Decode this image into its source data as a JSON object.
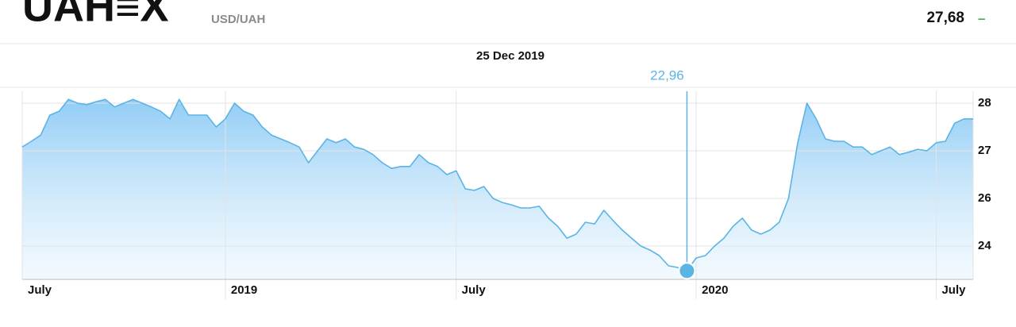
{
  "header": {
    "logo": "UAH≡X",
    "pair": "USD/UAH",
    "price": "27,68",
    "change": "–"
  },
  "chart_data": {
    "type": "area",
    "selected_date": "25 Dec 2019",
    "categories": [
      "July",
      null,
      null,
      null,
      null,
      null,
      null,
      null,
      null,
      null,
      null,
      null,
      null,
      null,
      null,
      null,
      null,
      null,
      null,
      null,
      null,
      null,
      "2019",
      null,
      null,
      null,
      null,
      null,
      null,
      null,
      null,
      null,
      null,
      null,
      null,
      null,
      null,
      null,
      null,
      null,
      null,
      null,
      null,
      null,
      null,
      null,
      null,
      "July",
      null,
      null,
      null,
      null,
      null,
      null,
      null,
      null,
      null,
      null,
      null,
      null,
      null,
      null,
      null,
      null,
      null,
      null,
      null,
      null,
      null,
      null,
      null,
      null,
      null,
      "2020",
      null,
      null,
      null,
      null,
      null,
      null,
      null,
      null,
      null,
      null,
      null,
      null,
      null,
      null,
      null,
      null,
      null,
      null,
      null,
      null,
      null,
      null,
      null,
      null,
      null,
      "July",
      null,
      null,
      null,
      null
    ],
    "values": [
      27.08,
      27.2,
      27.33,
      27.75,
      27.83,
      28.08,
      28.0,
      27.97,
      28.03,
      28.08,
      27.92,
      28.0,
      28.08,
      28.0,
      27.92,
      27.83,
      27.67,
      28.08,
      27.75,
      27.75,
      27.75,
      27.5,
      27.67,
      28.0,
      27.83,
      27.75,
      27.5,
      27.33,
      27.25,
      27.17,
      27.08,
      26.75,
      27.0,
      27.25,
      27.17,
      27.25,
      27.08,
      27.03,
      26.92,
      26.75,
      26.63,
      26.67,
      26.67,
      26.92,
      26.75,
      26.67,
      26.5,
      26.58,
      26.2,
      26.17,
      26.25,
      26.0,
      25.83,
      25.73,
      25.6,
      25.6,
      25.67,
      25.17,
      24.83,
      24.33,
      24.5,
      25.0,
      24.93,
      25.5,
      25.07,
      24.67,
      24.33,
      24.0,
      23.83,
      23.6,
      23.17,
      23.1,
      22.96,
      23.5,
      23.6,
      24.0,
      24.33,
      24.83,
      25.17,
      24.67,
      24.5,
      24.67,
      25.0,
      26.0,
      27.17,
      28.0,
      27.67,
      27.25,
      27.2,
      27.2,
      27.08,
      27.08,
      26.92,
      27.0,
      27.08,
      26.92,
      26.97,
      27.03,
      27.0,
      27.17,
      27.2,
      27.58,
      27.67,
      27.67
    ],
    "value_labels": [
      null,
      null,
      null,
      null,
      null,
      null,
      null,
      null,
      null,
      null,
      null,
      null,
      null,
      null,
      null,
      null,
      null,
      null,
      null,
      null,
      null,
      null,
      null,
      null,
      null,
      null,
      null,
      null,
      null,
      null,
      null,
      null,
      null,
      null,
      null,
      null,
      null,
      null,
      null,
      null,
      null,
      null,
      null,
      null,
      null,
      null,
      null,
      null,
      null,
      null,
      null,
      null,
      null,
      null,
      null,
      null,
      null,
      null,
      null,
      null,
      null,
      null,
      null,
      null,
      null,
      null,
      null,
      null,
      null,
      null,
      null,
      null,
      "22,96",
      null,
      null,
      null,
      null,
      null,
      null,
      null,
      null,
      null,
      null,
      null,
      null,
      null,
      null,
      null,
      null,
      null,
      null,
      null,
      null,
      null,
      null,
      null,
      null,
      null,
      null,
      null,
      null,
      null,
      null,
      null
    ],
    "color": "#5ab4e6",
    "ylim": [
      22.6,
      28.25
    ],
    "yticks": [
      28,
      27,
      26,
      24
    ],
    "grid": true
  }
}
